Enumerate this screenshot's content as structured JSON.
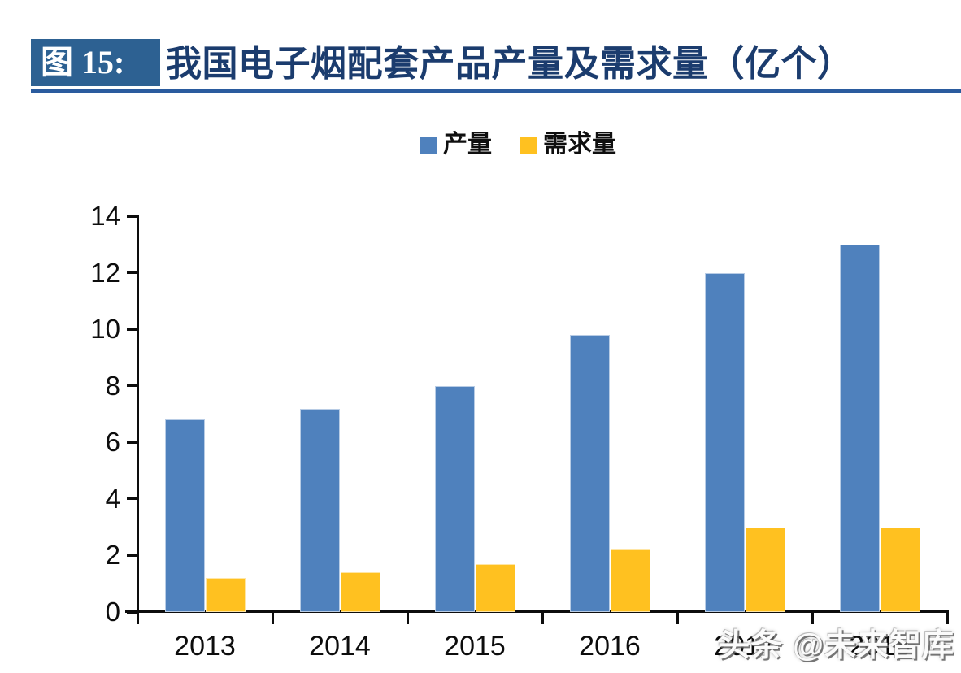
{
  "header": {
    "label": "图 15:",
    "title": "我国电子烟配套产品产量及需求量（亿个）"
  },
  "watermark": {
    "text": "头条 @未来智库"
  },
  "colors": {
    "header_box": "#2D6192",
    "title_text": "#1B3C6E",
    "underline": "#2A5B9E",
    "axis": "#0d0d0d",
    "series_production": "#4F81BD",
    "series_demand": "#FFC120"
  },
  "chart_data": {
    "type": "bar",
    "title": "我国电子烟配套产品产量及需求量（亿个）",
    "unit": "亿个",
    "categories": [
      "2013",
      "2014",
      "2015",
      "2016",
      "2017",
      "2018"
    ],
    "series": [
      {
        "key": "production",
        "name": "产量",
        "color": "#4F81BD",
        "values": [
          6.8,
          7.2,
          8.0,
          9.8,
          12.0,
          13.0
        ]
      },
      {
        "key": "demand",
        "name": "需求量",
        "color": "#FFC120",
        "values": [
          1.2,
          1.4,
          1.7,
          2.2,
          3.0,
          3.0
        ]
      }
    ],
    "xlabel": "",
    "ylabel": "",
    "ylim": [
      0,
      14
    ],
    "ytick_step": 2,
    "yticks": [
      0,
      2,
      4,
      6,
      8,
      10,
      12,
      14
    ],
    "grid": false,
    "legend_position": "top-center"
  }
}
